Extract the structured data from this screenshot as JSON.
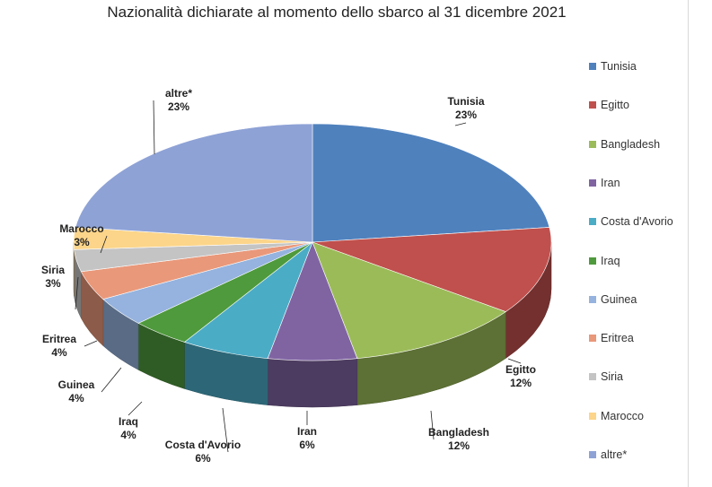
{
  "chart_data": {
    "type": "pie",
    "title": "Nazionalità dichiarate al momento dello sbarco al 31 dicembre 2021",
    "legend_position": "right",
    "slices": [
      {
        "label": "Tunisia",
        "value": 23,
        "value_label": "23%",
        "color": "#4f81bd"
      },
      {
        "label": "Egitto",
        "value": 12,
        "value_label": "12%",
        "color": "#c0504d"
      },
      {
        "label": "Bangladesh",
        "value": 12,
        "value_label": "12%",
        "color": "#9bbb59"
      },
      {
        "label": "Iran",
        "value": 6,
        "value_label": "6%",
        "color": "#8064a2"
      },
      {
        "label": "Costa d'Avorio",
        "value": 6,
        "value_label": "6%",
        "color": "#4bacc6"
      },
      {
        "label": "Iraq",
        "value": 4,
        "value_label": "4%",
        "color": "#4f9a3c"
      },
      {
        "label": "Guinea",
        "value": 4,
        "value_label": "4%",
        "color": "#95b3de"
      },
      {
        "label": "Eritrea",
        "value": 4,
        "value_label": "4%",
        "color": "#e9987a"
      },
      {
        "label": "Siria",
        "value": 3,
        "value_label": "3%",
        "color": "#c4c4c4"
      },
      {
        "label": "Marocco",
        "value": 3,
        "value_label": "3%",
        "color": "#fcd58a"
      },
      {
        "label": "altre*",
        "value": 23,
        "value_label": "23%",
        "color": "#8ea2d6"
      }
    ]
  }
}
